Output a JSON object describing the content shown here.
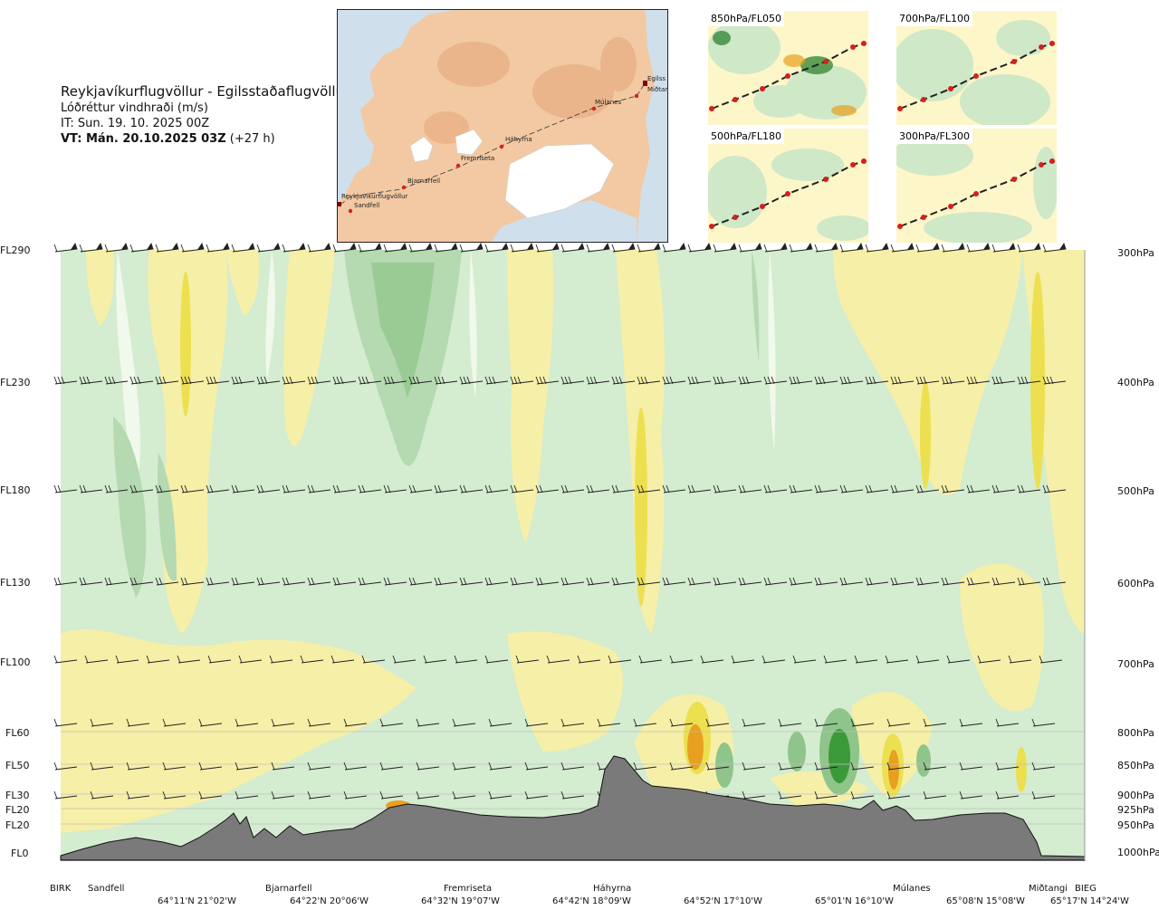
{
  "header": {
    "title": "Reykjavíkurflugvöllur - Egilsstaðaflugvöllur",
    "subtitle": "Lóðréttur vindhraði (m/s)",
    "issue_time": "IT: Sun. 19. 10. 2025 00Z",
    "valid_label": "VT: Mán. 20.10.2025 03Z",
    "valid_offset": "(+27 h)"
  },
  "route_map": {
    "stations": [
      "Reykjavíkurflugvöllur",
      "Sandfell",
      "Bjarnarfell",
      "Fremriseta",
      "Háhyrna",
      "Múlanes",
      "Miðtangi",
      "Egilss"
    ]
  },
  "mini_maps": [
    {
      "label": "850hPa/FL050"
    },
    {
      "label": "700hPa/FL100"
    },
    {
      "label": "500hPa/FL180"
    },
    {
      "label": "300hPa/FL300"
    }
  ],
  "levels": {
    "left": [
      "FL290",
      "FL230",
      "FL180",
      "FL130",
      "FL100",
      "FL60",
      "FL50",
      "FL30",
      "FL20",
      "FL20",
      "FL0"
    ],
    "right": [
      "300hPa",
      "400hPa",
      "500hPa",
      "600hPa",
      "700hPa",
      "800hPa",
      "850hPa",
      "900hPa",
      "925hPa",
      "950hPa",
      "1000hPa"
    ]
  },
  "stations": [
    "BIRK",
    "Sandfell",
    "Bjarnarfell",
    "Fremriseta",
    "Háhyrna",
    "Múlanes",
    "Miðtangi",
    "BIEG"
  ],
  "coordinates": [
    "64°11'N 21°02'W",
    "64°22'N 20°06'W",
    "64°32'N 19°07'W",
    "64°42'N 18°09'W",
    "64°52'N 17°10'W",
    "65°01'N 16°10'W",
    "65°08'N 15°08'W",
    "65°17'N 14°24'W"
  ],
  "colors": {
    "green_light": "#d4ecd0",
    "green_mid": "#b5d9b0",
    "green_dark": "#8fc48a",
    "green_strong": "#3a9a3a",
    "yellow_light": "#f6efa8",
    "yellow_mid": "#ece050",
    "orange": "#e8a020",
    "white_zone": "#f4fbf0",
    "terrain": "#7a7a7a",
    "sea": "#cfe0ec",
    "land": "#f2c9a3",
    "glacier": "#ffffff",
    "route": "#d81e1e"
  }
}
